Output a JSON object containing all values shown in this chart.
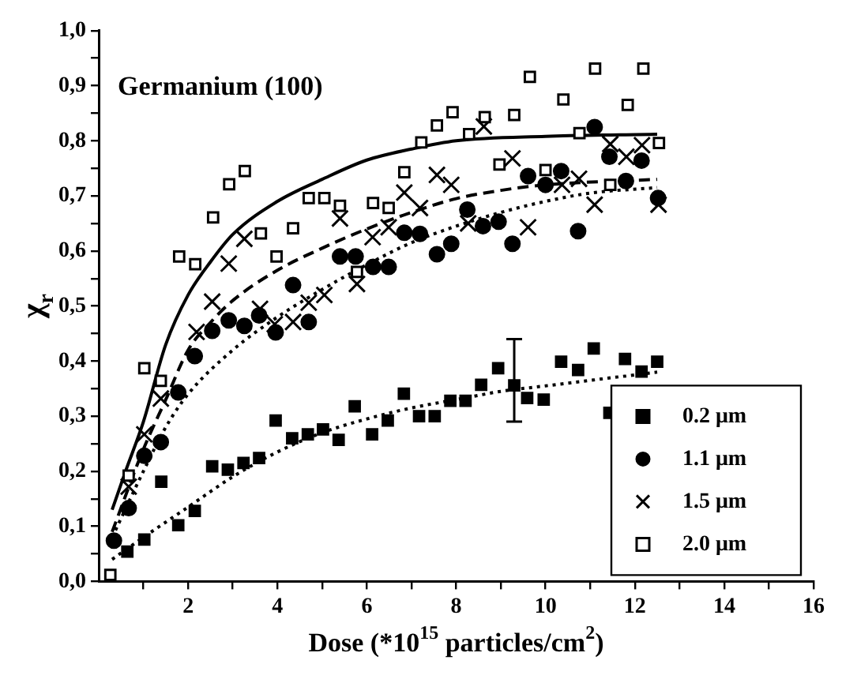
{
  "chart_data": {
    "type": "scatter",
    "xlabel": "Dose (*10$^{15}$ particles/cm$^{2}$)",
    "ylabel": "χ$_{r}$",
    "annotations": [
      "Germanium (100)"
    ],
    "legend": "bottom right",
    "xlim": [
      0,
      16
    ],
    "xticks": [
      {
        "value": 1,
        "label": null
      },
      2,
      {
        "value": 3,
        "label": null
      },
      4,
      {
        "value": 5,
        "label": null
      },
      6,
      {
        "value": 7,
        "label": null
      },
      8,
      {
        "value": 9,
        "label": null
      },
      10,
      {
        "value": 11,
        "label": null
      },
      12,
      {
        "value": 13,
        "label": null
      },
      14,
      {
        "value": 15,
        "label": null
      },
      16
    ],
    "ylim": [
      0,
      1
    ],
    "yticks": [
      {
        "value": 0,
        "label": "0,0"
      },
      {
        "value": 0.05,
        "label": null
      },
      {
        "value": 0.1,
        "label": "0,1"
      },
      {
        "value": 0.15,
        "label": null
      },
      {
        "value": 0.2,
        "label": "0,2"
      },
      {
        "value": 0.25,
        "label": null
      },
      {
        "value": 0.3,
        "label": "0,3"
      },
      {
        "value": 0.35,
        "label": null
      },
      {
        "value": 0.4,
        "label": "0,4"
      },
      {
        "value": 0.45,
        "label": null
      },
      {
        "value": 0.5,
        "label": "0,5"
      },
      {
        "value": 0.55,
        "label": null
      },
      {
        "value": 0.6,
        "label": "0,6"
      },
      {
        "value": 0.65,
        "label": null
      },
      {
        "value": 0.7,
        "label": "0,7"
      },
      {
        "value": 0.75,
        "label": null
      },
      {
        "value": 0.8,
        "label": "0,8"
      },
      {
        "value": 0.85,
        "label": null
      },
      {
        "value": 0.9,
        "label": "0,9"
      },
      {
        "value": 0.95,
        "label": null
      },
      {
        "value": 1,
        "label": "1,0"
      }
    ],
    "series": [
      {
        "name": "0.2 μm",
        "color": "#000000",
        "marker": "square",
        "x": [
          0.64,
          1.02,
          1.4,
          1.78,
          2.15,
          2.54,
          2.89,
          3.24,
          3.59,
          3.96,
          4.33,
          4.68,
          5.02,
          5.37,
          5.73,
          6.12,
          6.47,
          6.83,
          7.17,
          7.52,
          7.87,
          8.21,
          8.56,
          8.94,
          9.3,
          9.59,
          9.96,
          10.35,
          10.73,
          11.08,
          11.43,
          11.78,
          12.15,
          12.5
        ],
        "values": [
          0.054,
          0.076,
          0.181,
          0.102,
          0.128,
          0.209,
          0.203,
          0.215,
          0.224,
          0.292,
          0.26,
          0.267,
          0.276,
          0.257,
          0.318,
          0.267,
          0.292,
          0.341,
          0.3,
          0.3,
          0.328,
          0.328,
          0.357,
          0.387,
          0.356,
          0.333,
          0.33,
          0.399,
          0.384,
          0.423,
          0.306,
          0.404,
          0.381,
          0.399
        ],
        "errors": [
          null,
          null,
          null,
          null,
          null,
          null,
          null,
          null,
          null,
          null,
          null,
          null,
          null,
          null,
          null,
          null,
          null,
          null,
          null,
          null,
          null,
          null,
          null,
          null,
          [
            0.29,
            0.44
          ],
          null,
          null,
          null,
          null,
          null,
          null,
          null,
          null,
          null
        ]
      },
      {
        "name": "1.1 μm",
        "color": "#000000",
        "marker": "circle",
        "x": [
          0.34,
          0.67,
          1.02,
          1.39,
          1.78,
          2.15,
          2.54,
          2.91,
          3.26,
          3.59,
          3.96,
          4.35,
          4.7,
          5.4,
          5.75,
          6.14,
          6.49,
          6.84,
          7.19,
          7.57,
          7.89,
          8.25,
          8.6,
          8.95,
          9.26,
          9.61,
          10.0,
          10.35,
          10.73,
          11.1,
          11.43,
          11.8,
          12.15,
          12.52
        ],
        "values": [
          0.074,
          0.133,
          0.228,
          0.253,
          0.343,
          0.409,
          0.455,
          0.474,
          0.464,
          0.483,
          0.452,
          0.538,
          0.471,
          0.59,
          0.59,
          0.571,
          0.571,
          0.633,
          0.631,
          0.594,
          0.613,
          0.675,
          0.645,
          0.653,
          0.613,
          0.736,
          0.72,
          0.745,
          0.636,
          0.825,
          0.771,
          0.727,
          0.764,
          0.696
        ]
      },
      {
        "name": "1.5 μm",
        "color": "#000000",
        "marker": "cross",
        "x": [
          0.67,
          1.02,
          1.39,
          2.19,
          2.54,
          2.91,
          3.26,
          3.61,
          3.94,
          4.35,
          4.7,
          5.05,
          5.4,
          5.78,
          6.13,
          6.49,
          6.84,
          7.19,
          7.57,
          7.89,
          8.27,
          8.62,
          9.26,
          9.61,
          10.37,
          10.75,
          11.1,
          11.45,
          11.81,
          12.16,
          12.53
        ],
        "values": [
          0.172,
          0.267,
          0.332,
          0.453,
          0.508,
          0.577,
          0.622,
          0.495,
          0.467,
          0.471,
          0.506,
          0.52,
          0.659,
          0.54,
          0.625,
          0.643,
          0.706,
          0.678,
          0.738,
          0.72,
          0.65,
          0.826,
          0.768,
          0.643,
          0.72,
          0.731,
          0.684,
          0.794,
          0.771,
          0.792,
          0.684
        ]
      },
      {
        "name": "2.0 μm",
        "color": "#000000",
        "marker": "square",
        "x": [
          0.26,
          0.67,
          1.02,
          1.39,
          1.8,
          2.16,
          2.56,
          2.92,
          3.27,
          3.63,
          3.98,
          4.35,
          4.7,
          5.05,
          5.4,
          5.78,
          6.14,
          6.49,
          6.84,
          7.22,
          7.57,
          7.92,
          8.29,
          8.64,
          8.97,
          9.3,
          9.65,
          10.0,
          10.4,
          10.76,
          11.11,
          11.45,
          11.84,
          12.19,
          12.54
        ],
        "values": [
          0.012,
          0.192,
          0.387,
          0.364,
          0.59,
          0.576,
          0.661,
          0.721,
          0.745,
          0.632,
          0.59,
          0.641,
          0.696,
          0.696,
          0.682,
          0.562,
          0.687,
          0.678,
          0.743,
          0.797,
          0.828,
          0.852,
          0.812,
          0.843,
          0.757,
          0.847,
          0.916,
          0.747,
          0.875,
          0.814,
          0.931,
          0.72,
          0.865,
          0.931,
          0.796
        ]
      },
      {
        "type": "line",
        "color": "#000000",
        "line_style": "dotted",
        "x": [
          0.3,
          1,
          2,
          3,
          4,
          5,
          6,
          7,
          8,
          9,
          10,
          11,
          12.5
        ],
        "values": [
          0.04,
          0.08,
          0.135,
          0.19,
          0.235,
          0.27,
          0.295,
          0.315,
          0.33,
          0.345,
          0.355,
          0.365,
          0.38
        ]
      },
      {
        "type": "line",
        "color": "#000000",
        "line_style": "dotted",
        "x": [
          0.3,
          1,
          1.5,
          2,
          3,
          4,
          5,
          6,
          7,
          8,
          9,
          10,
          11,
          12.5
        ],
        "values": [
          0.08,
          0.2,
          0.28,
          0.34,
          0.42,
          0.48,
          0.53,
          0.575,
          0.615,
          0.645,
          0.67,
          0.69,
          0.705,
          0.715
        ]
      },
      {
        "type": "line",
        "color": "#000000",
        "line_style": "dashed",
        "x": [
          0.3,
          1,
          1.5,
          2,
          2.5,
          3,
          4,
          5,
          6,
          7,
          8,
          9,
          10,
          12.5
        ],
        "values": [
          0.09,
          0.24,
          0.33,
          0.42,
          0.47,
          0.51,
          0.565,
          0.605,
          0.64,
          0.67,
          0.695,
          0.71,
          0.72,
          0.73
        ]
      },
      {
        "type": "line",
        "color": "#000000",
        "line_style": "solid",
        "x": [
          0.3,
          0.6,
          1,
          1.5,
          2,
          2.5,
          3,
          4,
          5,
          6,
          7,
          8,
          10,
          12.5
        ],
        "values": [
          0.13,
          0.2,
          0.29,
          0.43,
          0.52,
          0.58,
          0.63,
          0.69,
          0.73,
          0.765,
          0.785,
          0.8,
          0.808,
          0.812
        ]
      }
    ]
  }
}
